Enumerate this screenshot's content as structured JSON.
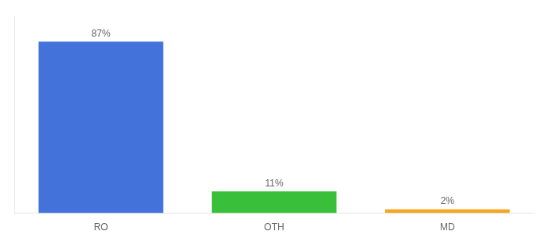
{
  "chart_data": {
    "type": "bar",
    "categories": [
      "RO",
      "OTH",
      "MD"
    ],
    "values": [
      87,
      11,
      2
    ],
    "value_labels": [
      "87%",
      "11%",
      "2%"
    ],
    "colors": [
      "#4472db",
      "#3abf3a",
      "#f5a623"
    ],
    "ylim": [
      0,
      100
    ],
    "data_labels": true,
    "tick_labels": "x",
    "grid": false
  }
}
